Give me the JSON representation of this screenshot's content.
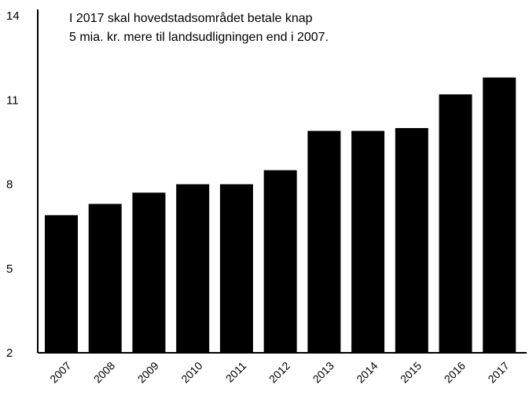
{
  "chart_data": {
    "type": "bar",
    "categories": [
      "2007",
      "2008",
      "2009",
      "2010",
      "2011",
      "2012",
      "2013",
      "2014",
      "2015",
      "2016",
      "2017"
    ],
    "values": [
      6.9,
      7.3,
      7.7,
      8.0,
      8.0,
      8.5,
      9.9,
      9.9,
      10.0,
      11.2,
      11.8
    ],
    "ylim": [
      2,
      14
    ],
    "yticks": [
      2,
      5,
      8,
      11,
      14
    ],
    "annotation": [
      "I 2017 skal hovedstadsområdet betale knap",
      "5 mia. kr. mere til landsudligningen end i 2007."
    ],
    "bar_color": "#000000",
    "grid": false,
    "xlabel": "",
    "ylabel": ""
  }
}
